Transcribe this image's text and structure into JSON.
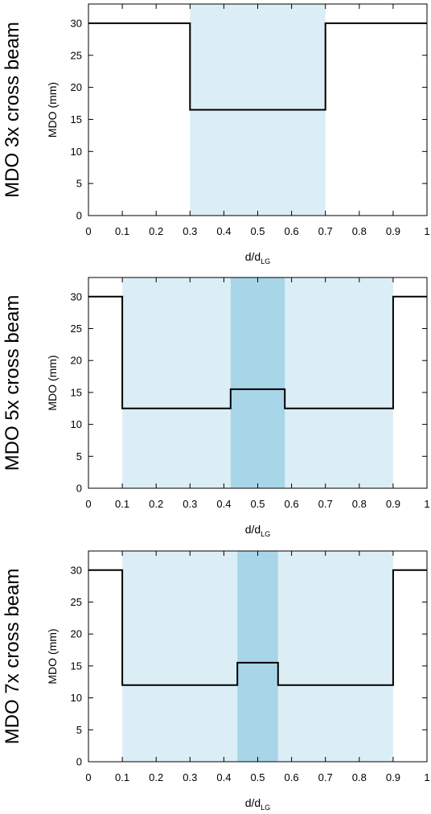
{
  "colors": {
    "light_band": "#dbeef6",
    "dark_band": "#a8d5e8",
    "line": "#000000",
    "frame": "#000000"
  },
  "chart_data": [
    {
      "type": "line",
      "row_label": "MDO 3x cross beam",
      "ylabel": "MDO (mm)",
      "xlabel_main": "d/d",
      "xlabel_sub": "LG",
      "xlim": [
        0,
        1
      ],
      "ylim": [
        0,
        33
      ],
      "xticks": [
        0,
        0.1,
        0.2,
        0.3,
        0.4,
        0.5,
        0.6,
        0.7,
        0.8,
        0.9,
        1
      ],
      "xtick_labels": [
        "0",
        "0.1",
        "0.2",
        "0.3",
        "0.4",
        "0.5",
        "0.6",
        "0.7",
        "0.8",
        "0.9",
        "1"
      ],
      "yticks": [
        0,
        5,
        10,
        15,
        20,
        25,
        30
      ],
      "ytick_labels": [
        "0",
        "5",
        "10",
        "15",
        "20",
        "25",
        "30"
      ],
      "bands": [
        {
          "x0": 0.3,
          "x1": 0.7,
          "shade": "light"
        }
      ],
      "series": [
        {
          "x": [
            0,
            0.3,
            0.3,
            0.7,
            0.7,
            1
          ],
          "y": [
            30,
            30,
            16.5,
            16.5,
            30,
            30
          ]
        }
      ]
    },
    {
      "type": "line",
      "row_label": "MDO 5x cross beam",
      "ylabel": "MDO (mm)",
      "xlabel_main": "d/d",
      "xlabel_sub": "LG",
      "xlim": [
        0,
        1
      ],
      "ylim": [
        0,
        33
      ],
      "xticks": [
        0,
        0.1,
        0.2,
        0.3,
        0.4,
        0.5,
        0.6,
        0.7,
        0.8,
        0.9,
        1
      ],
      "xtick_labels": [
        "0",
        "0.1",
        "0.2",
        "0.3",
        "0.4",
        "0.5",
        "0.6",
        "0.7",
        "0.8",
        "0.9",
        "1"
      ],
      "yticks": [
        0,
        5,
        10,
        15,
        20,
        25,
        30
      ],
      "ytick_labels": [
        "0",
        "5",
        "10",
        "15",
        "20",
        "25",
        "30"
      ],
      "bands": [
        {
          "x0": 0.1,
          "x1": 0.9,
          "shade": "light"
        },
        {
          "x0": 0.42,
          "x1": 0.58,
          "shade": "dark"
        }
      ],
      "series": [
        {
          "x": [
            0,
            0.1,
            0.1,
            0.42,
            0.42,
            0.58,
            0.58,
            0.9,
            0.9,
            1
          ],
          "y": [
            30,
            30,
            12.5,
            12.5,
            15.5,
            15.5,
            12.5,
            12.5,
            30,
            30
          ]
        }
      ]
    },
    {
      "type": "line",
      "row_label": "MDO 7x cross beam",
      "ylabel": "MDO (mm)",
      "xlabel_main": "d/d",
      "xlabel_sub": "LG",
      "xlim": [
        0,
        1
      ],
      "ylim": [
        0,
        33
      ],
      "xticks": [
        0,
        0.1,
        0.2,
        0.3,
        0.4,
        0.5,
        0.6,
        0.7,
        0.8,
        0.9,
        1
      ],
      "xtick_labels": [
        "0",
        "0.1",
        "0.2",
        "0.3",
        "0.4",
        "0.5",
        "0.6",
        "0.7",
        "0.8",
        "0.9",
        "1"
      ],
      "yticks": [
        0,
        5,
        10,
        15,
        20,
        25,
        30
      ],
      "ytick_labels": [
        "0",
        "5",
        "10",
        "15",
        "20",
        "25",
        "30"
      ],
      "bands": [
        {
          "x0": 0.1,
          "x1": 0.9,
          "shade": "light"
        },
        {
          "x0": 0.44,
          "x1": 0.56,
          "shade": "dark"
        }
      ],
      "series": [
        {
          "x": [
            0,
            0.1,
            0.1,
            0.44,
            0.44,
            0.56,
            0.56,
            0.9,
            0.9,
            1
          ],
          "y": [
            30,
            30,
            12,
            12,
            15.5,
            15.5,
            12,
            12,
            30,
            30
          ]
        }
      ]
    }
  ]
}
